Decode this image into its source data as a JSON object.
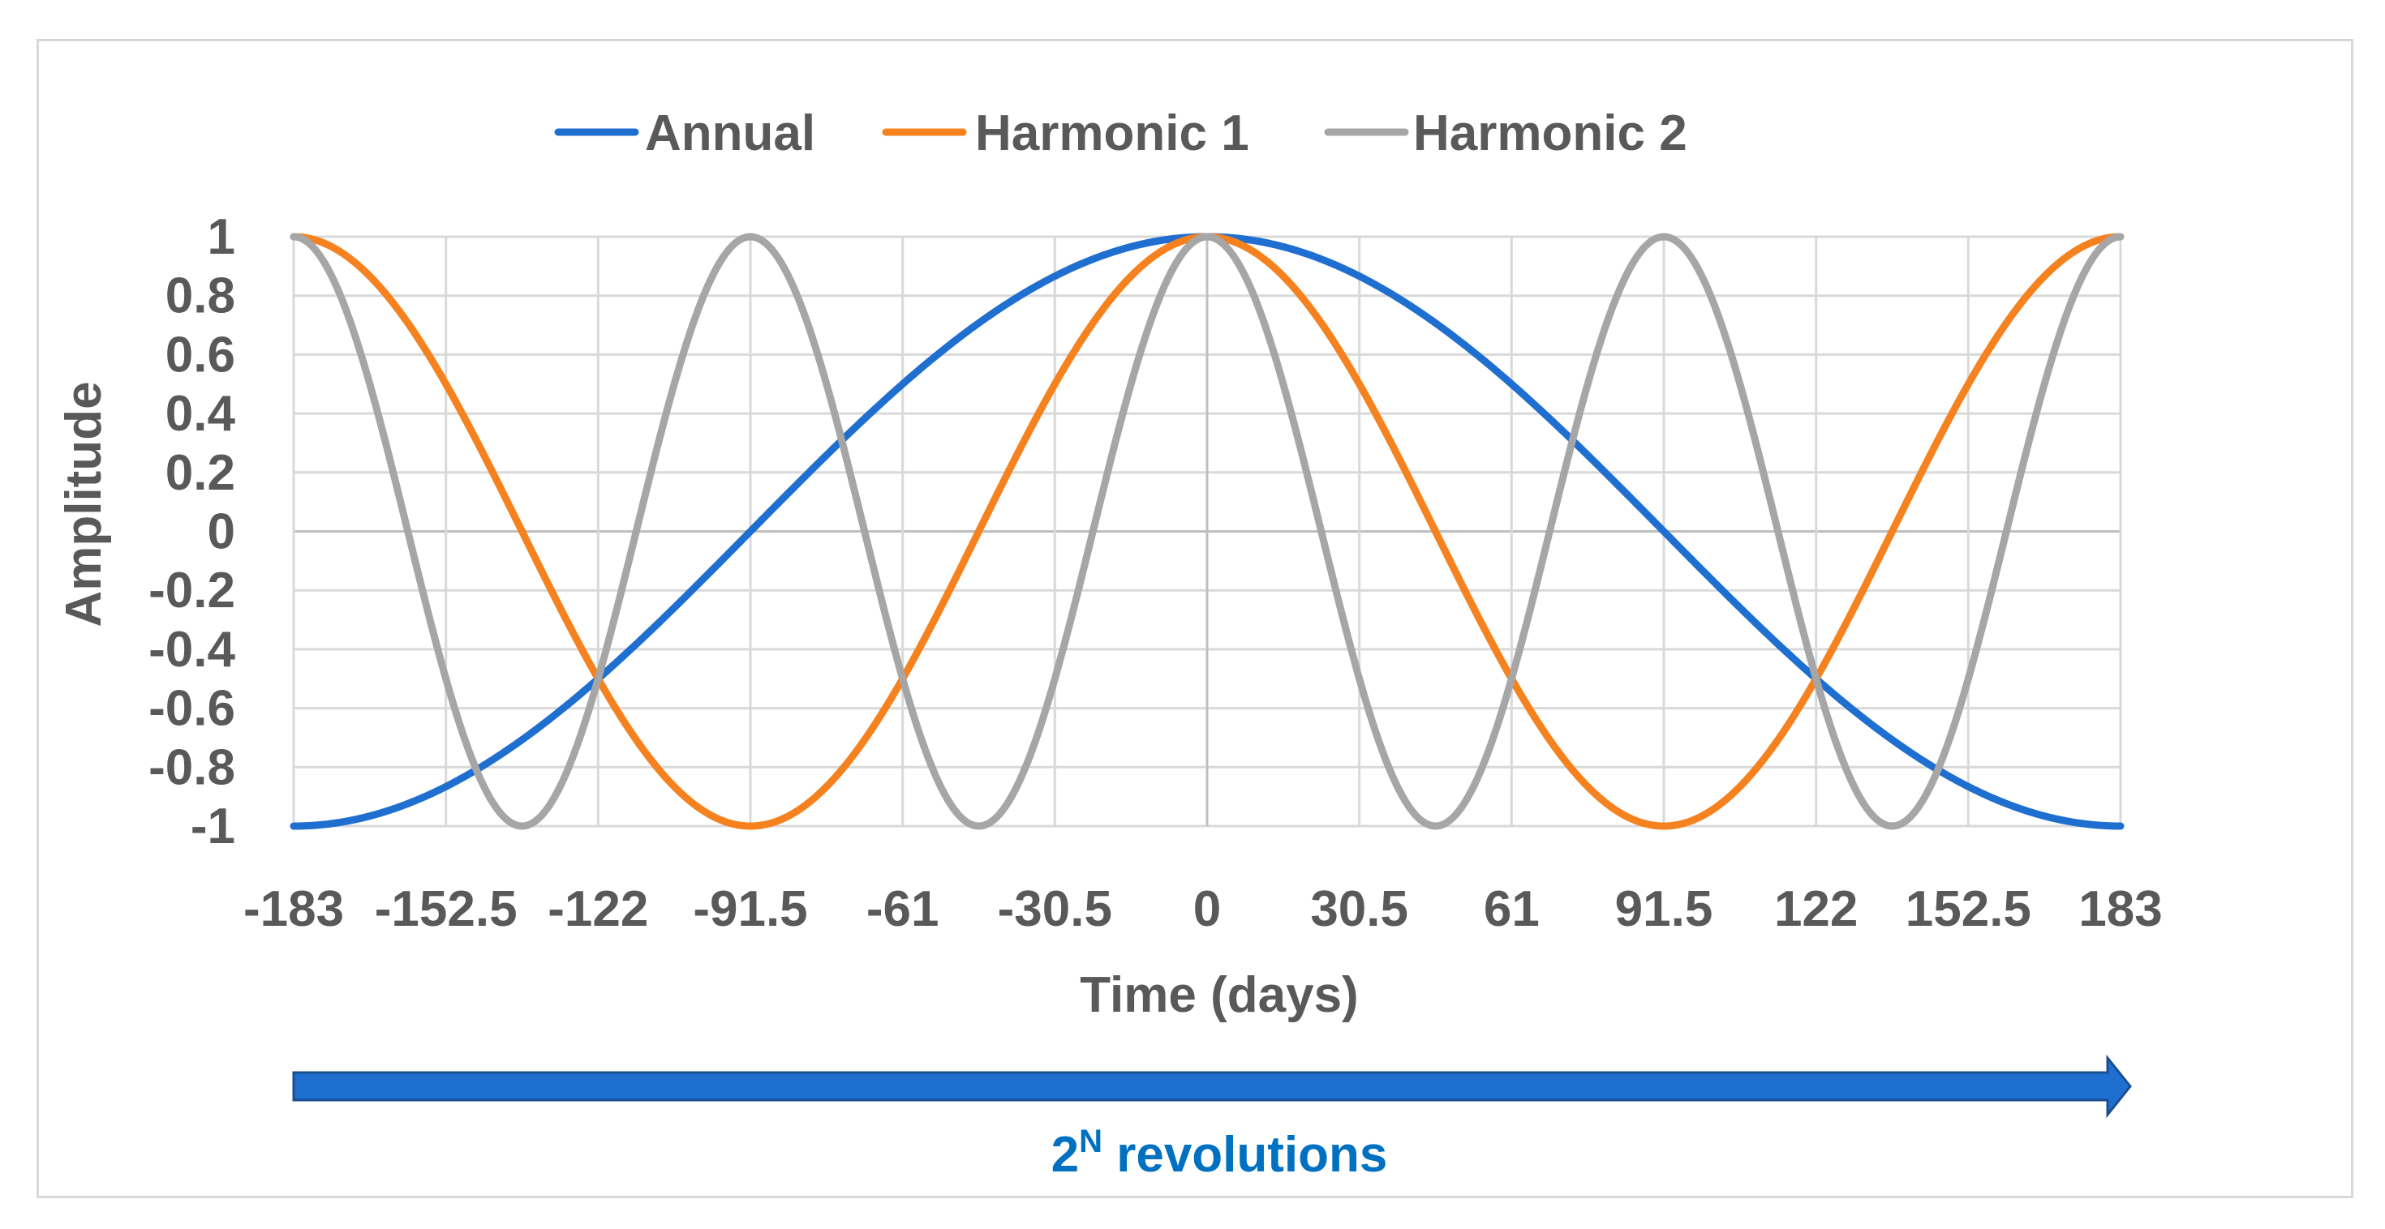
{
  "chart_data": {
    "type": "line",
    "title": "",
    "xlabel": "Time (days)",
    "ylabel": "Amplitude",
    "xlim": [
      -183,
      183
    ],
    "ylim": [
      -1,
      1
    ],
    "x_ticks": [
      -183,
      -152.5,
      -122,
      -91.5,
      -61,
      -30.5,
      0,
      30.5,
      61,
      91.5,
      122,
      152.5,
      183
    ],
    "x_tick_labels": [
      "-183",
      "-152.5",
      "-122",
      "-91.5",
      "-61",
      "-30.5",
      "0",
      "30.5",
      "61",
      "91.5",
      "122",
      "152.5",
      "183"
    ],
    "y_ticks": [
      1,
      0.8,
      0.6,
      0.4,
      0.2,
      0,
      -0.2,
      -0.4,
      -0.6,
      -0.8,
      -1
    ],
    "y_tick_labels": [
      "1",
      "0.8",
      "0.6",
      "0.4",
      "0.2",
      "0",
      "-0.2",
      "-0.4",
      "-0.6",
      "-0.8",
      "-1"
    ],
    "grid": true,
    "legend_position": "top",
    "x": [
      -183,
      -152.5,
      -122,
      -91.5,
      -61,
      -30.5,
      0,
      30.5,
      61,
      91.5,
      122,
      152.5,
      183
    ],
    "series": [
      {
        "name": "Annual",
        "color": "#1f6fd1",
        "values": [
          -1,
          -0.866,
          -0.5,
          0,
          0.5,
          0.866,
          1,
          0.866,
          0.5,
          0,
          -0.5,
          -0.866,
          -1
        ]
      },
      {
        "name": "Harmonic 1",
        "color": "#f5821f",
        "values": [
          1,
          0.5,
          -0.5,
          -1,
          -0.5,
          0.5,
          1,
          0.5,
          -0.5,
          -1,
          -0.5,
          0.5,
          1
        ]
      },
      {
        "name": "Harmonic 2",
        "color": "#a6a6a6",
        "values": [
          1,
          -0.5,
          -0.5,
          1,
          -0.5,
          -0.5,
          1,
          -0.5,
          -0.5,
          1,
          -0.5,
          -0.5,
          1
        ]
      }
    ],
    "annotation": {
      "arrow_label_base": "2",
      "arrow_label_superscript": "N",
      "arrow_label_rest": " revolutions",
      "arrow_color": "#1f6fd1",
      "label_color": "#0070c0"
    }
  }
}
